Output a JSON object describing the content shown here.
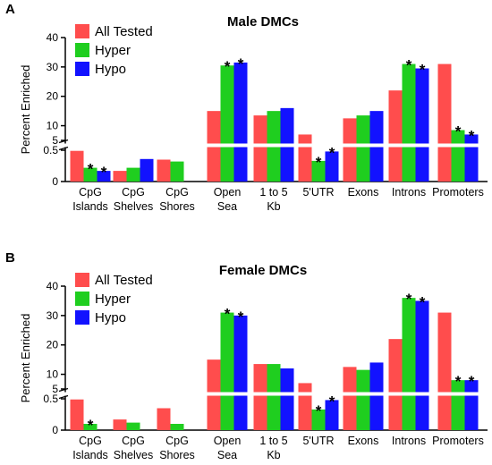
{
  "colors": {
    "All Tested": "#ff4d4d",
    "Hyper": "#1fce1f",
    "Hypo": "#1212ff"
  },
  "chart_data": [
    {
      "type": "bar",
      "panel": "A",
      "title": "Male DMCs",
      "ylabel": "Percent Enriched",
      "y_axis_break": {
        "lower_range": [
          0,
          0.5
        ],
        "upper_range": [
          5,
          40
        ]
      },
      "yticks": [
        "0",
        "0.5",
        "5",
        "10",
        "20",
        "30",
        "40"
      ],
      "categories": [
        [
          "CpG",
          "Islands"
        ],
        [
          "CpG",
          "Shelves"
        ],
        [
          "CpG",
          "Shores"
        ],
        [
          "Open",
          "Sea"
        ],
        [
          "1 to 5",
          "Kb"
        ],
        [
          "5'UTR"
        ],
        [
          "Exons"
        ],
        [
          "Introns"
        ],
        [
          "Promoters"
        ]
      ],
      "legend": {
        "position": "top-left"
      },
      "series": [
        {
          "name": "All Tested",
          "values": [
            0.49,
            0.17,
            0.35,
            15,
            13.5,
            7,
            12.5,
            22,
            31
          ]
        },
        {
          "name": "Hyper",
          "values": [
            0.22,
            0.22,
            0.32,
            30.5,
            15,
            0.33,
            13.5,
            31,
            8.5
          ]
        },
        {
          "name": "Hypo",
          "values": [
            0.17,
            0.36,
            0,
            31.5,
            16,
            0.48,
            15,
            29.5,
            7
          ]
        }
      ],
      "significant": [
        [
          0,
          1
        ],
        [
          0,
          2
        ],
        [
          3,
          1
        ],
        [
          3,
          2
        ],
        [
          5,
          1
        ],
        [
          5,
          2
        ],
        [
          7,
          1
        ],
        [
          7,
          2
        ],
        [
          8,
          1
        ],
        [
          8,
          2
        ]
      ]
    },
    {
      "type": "bar",
      "panel": "B",
      "title": "Female DMCs",
      "ylabel": "Percent Enriched",
      "y_axis_break": {
        "lower_range": [
          0,
          0.5
        ],
        "upper_range": [
          5,
          40
        ]
      },
      "yticks": [
        "0",
        "0.5",
        "5",
        "10",
        "20",
        "30",
        "40"
      ],
      "categories": [
        [
          "CpG",
          "Islands"
        ],
        [
          "CpG",
          "Shelves"
        ],
        [
          "CpG",
          "Shores"
        ],
        [
          "Open",
          "Sea"
        ],
        [
          "1 to 5",
          "Kb"
        ],
        [
          "5'UTR"
        ],
        [
          "Exons"
        ],
        [
          "Introns"
        ],
        [
          "Promoters"
        ]
      ],
      "legend": {
        "position": "top-left"
      },
      "series": [
        {
          "name": "All Tested",
          "values": [
            0.49,
            0.17,
            0.35,
            15,
            13.5,
            7,
            12.5,
            22,
            31
          ]
        },
        {
          "name": "Hyper",
          "values": [
            0.1,
            0.12,
            0.1,
            31,
            13.5,
            0.33,
            11.5,
            36,
            8
          ]
        },
        {
          "name": "Hypo",
          "values": [
            0,
            0,
            0,
            30,
            12,
            0.48,
            14,
            35,
            8
          ]
        }
      ],
      "significant": [
        [
          0,
          1
        ],
        [
          3,
          1
        ],
        [
          3,
          2
        ],
        [
          5,
          1
        ],
        [
          5,
          2
        ],
        [
          7,
          1
        ],
        [
          7,
          2
        ],
        [
          8,
          1
        ],
        [
          8,
          2
        ]
      ]
    }
  ]
}
